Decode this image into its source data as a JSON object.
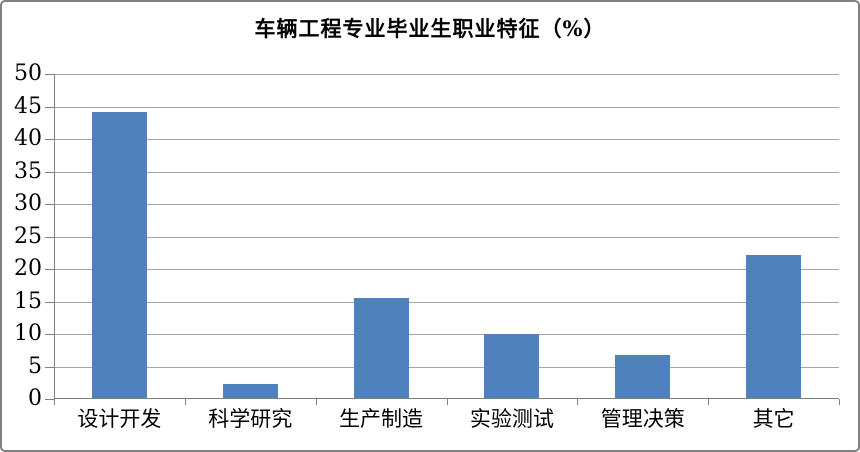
{
  "chart_data": {
    "type": "bar",
    "title": "车辆工程专业毕业生职业特征（%）",
    "categories": [
      "设计开发",
      "科学研究",
      "生产制造",
      "实验测试",
      "管理决策",
      "其它"
    ],
    "values": [
      44,
      2.2,
      15.4,
      9.8,
      6.6,
      22
    ],
    "series_count": 1,
    "xlabel": "",
    "ylabel": "",
    "ylim": [
      0,
      50
    ],
    "ytick_interval": 5,
    "ytick_labels": [
      "0",
      "5",
      "10",
      "15",
      "20",
      "25",
      "30",
      "35",
      "40",
      "45",
      "50"
    ],
    "grid": "horizontal",
    "legend": "none",
    "colors": {
      "bar": "#4f81bd",
      "gridline": "#a6a6a6",
      "axis": "#808080",
      "tick": "#808080",
      "frame_border": "#808080",
      "text": "#000000",
      "background": "#ffffff"
    }
  }
}
